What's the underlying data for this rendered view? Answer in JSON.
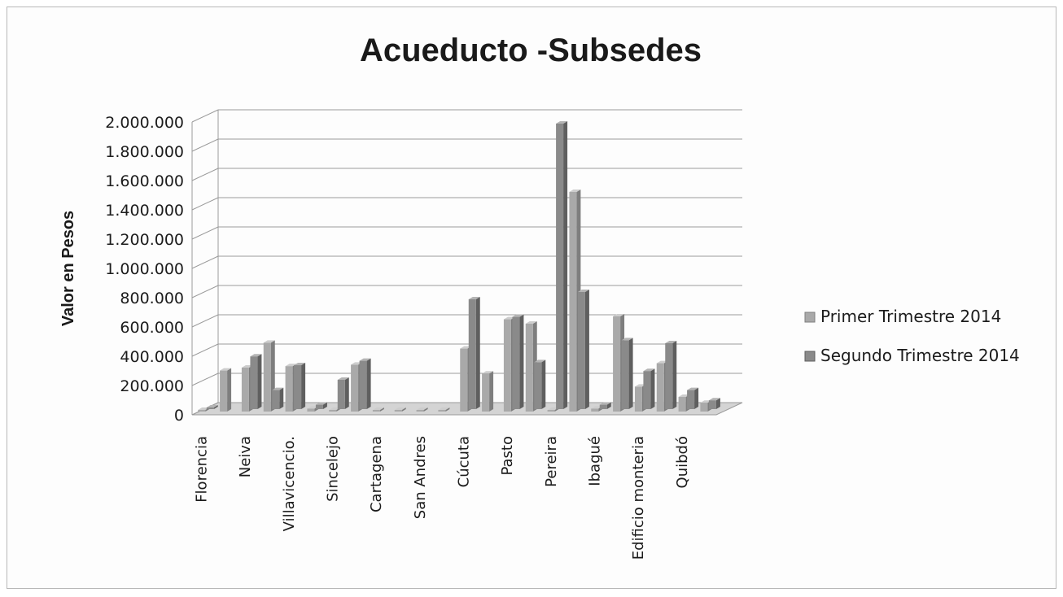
{
  "chart_data": {
    "type": "bar",
    "title": "Acueducto -Subsedes",
    "xlabel": "",
    "ylabel": "Valor en Pesos",
    "ylim": [
      0,
      2000000
    ],
    "yticks": [
      0,
      200000,
      400000,
      600000,
      800000,
      1000000,
      1200000,
      1400000,
      1600000,
      1800000,
      2000000
    ],
    "ytick_labels": [
      "0",
      "200.000",
      "400.000",
      "600.000",
      "800.000",
      "1.000.000",
      "1.200.000",
      "1.400.000",
      "1.600.000",
      "1.800.000",
      "2.000.000"
    ],
    "categories": [
      "Florencia",
      "",
      "Neiva",
      "",
      "Villavicencio.",
      "",
      "Sincelejo",
      "",
      "Cartagena",
      "",
      "San Andres",
      "",
      "Cúcuta",
      "",
      "Pasto",
      "",
      "Pereira",
      "",
      "Ibagué",
      "",
      "Edificio monteria",
      "",
      "Quibdó",
      ""
    ],
    "series": [
      {
        "name": "Primer Trimestre 2014",
        "values": [
          10000,
          280000,
          300000,
          470000,
          310000,
          20000,
          10000,
          320000,
          5000,
          5000,
          5000,
          5000,
          430000,
          260000,
          630000,
          600000,
          5000,
          1500000,
          20000,
          650000,
          170000,
          330000,
          100000,
          60000
        ]
      },
      {
        "name": "Segundo Trimestre 2014",
        "values": [
          10000,
          0,
          360000,
          130000,
          300000,
          30000,
          200000,
          330000,
          0,
          0,
          0,
          0,
          750000,
          0,
          630000,
          320000,
          1950000,
          800000,
          30000,
          470000,
          260000,
          450000,
          130000,
          60000
        ]
      }
    ],
    "legend": "right",
    "grid": true
  },
  "colors": {
    "series1_front": "#a9a9a9",
    "series1_side": "#7e7e7e",
    "series1_top": "#cdcdcd",
    "series2_front": "#8a8a8a",
    "series2_side": "#5f5f5f",
    "series2_top": "#b4b4b4",
    "gridline": "#9a9a9a",
    "floor": "#d4d4d4"
  }
}
